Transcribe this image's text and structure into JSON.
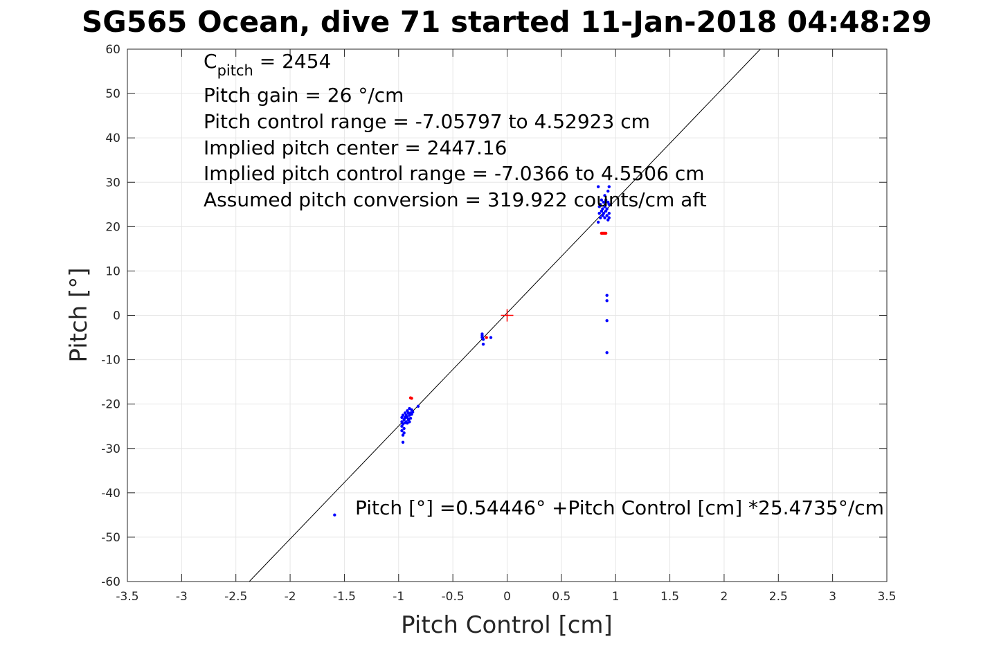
{
  "chart_data": {
    "type": "scatter",
    "title": "SG565 Ocean, dive 71 started 11-Jan-2018 04:48:29",
    "xlabel": "Pitch Control [cm]",
    "ylabel": "Pitch [°]",
    "xlim": [
      -3.5,
      3.5
    ],
    "ylim": [
      -60,
      60
    ],
    "xticks": [
      -3.5,
      -3,
      -2.5,
      -2,
      -1.5,
      -1,
      -0.5,
      0,
      0.5,
      1,
      1.5,
      2,
      2.5,
      3,
      3.5
    ],
    "yticks": [
      60,
      50,
      40,
      30,
      20,
      10,
      0,
      -10,
      -20,
      -30,
      -40,
      -50,
      -60
    ],
    "xtick_labels": [
      "-3.5",
      "-3",
      "-2.5",
      "-2",
      "-1.5",
      "-1",
      "-0.5",
      "0",
      "0.5",
      "1",
      "1.5",
      "2",
      "2.5",
      "3",
      "3.5"
    ],
    "ytick_labels": [
      "60",
      "50",
      "40",
      "30",
      "20",
      "10",
      "0",
      "-10",
      "-20",
      "-30",
      "-40",
      "-50",
      "-60"
    ],
    "grid": true,
    "annotations": {
      "c_pitch_main": "C",
      "c_pitch_sub": "pitch",
      "c_pitch_value": " = 2454",
      "lines": [
        "Pitch gain = 26 °/cm",
        "Pitch control range = -7.05797 to 4.52923 cm",
        "Implied pitch center = 2447.16",
        "Implied pitch control range = -7.0366 to 4.5506 cm",
        "Assumed pitch conversion = 319.922 counts/cm aft"
      ],
      "fit_equation": "Pitch [°] =0.54446° +Pitch Control [cm] *25.4735°/cm"
    },
    "fit_line": {
      "intercept": 0.54446,
      "slope": 25.4735,
      "color": "#000000"
    },
    "center_marker": {
      "x": 0,
      "y": 0,
      "color": "#ff0000",
      "shape": "plus"
    },
    "series": [
      {
        "color": "#0000ff",
        "points": [
          [
            -1.59,
            -45
          ],
          [
            -0.97,
            -23.0
          ],
          [
            -0.97,
            -24.0
          ],
          [
            -0.97,
            -25.0
          ],
          [
            -0.97,
            -26.0
          ],
          [
            -0.96,
            -27.0
          ],
          [
            -0.96,
            -28.6
          ],
          [
            -0.96,
            -22.5
          ],
          [
            -0.96,
            -24.5
          ],
          [
            -0.95,
            -23.5
          ],
          [
            -0.95,
            -25.5
          ],
          [
            -0.95,
            -26.5
          ],
          [
            -0.94,
            -22.0
          ],
          [
            -0.94,
            -23.0
          ],
          [
            -0.94,
            -24.2
          ],
          [
            -0.93,
            -22.5
          ],
          [
            -0.93,
            -24.0
          ],
          [
            -0.92,
            -21.5
          ],
          [
            -0.92,
            -23.0
          ],
          [
            -0.92,
            -24.3
          ],
          [
            -0.91,
            -22.0
          ],
          [
            -0.91,
            -23.5
          ],
          [
            -0.9,
            -21.0
          ],
          [
            -0.9,
            -22.5
          ],
          [
            -0.9,
            -24.0
          ],
          [
            -0.89,
            -22.0
          ],
          [
            -0.89,
            -23.2
          ],
          [
            -0.88,
            -21.3
          ],
          [
            -0.88,
            -22.3
          ],
          [
            -0.87,
            -21.8
          ],
          [
            -0.82,
            -20.5
          ],
          [
            -0.23,
            -4.2
          ],
          [
            -0.23,
            -4.6
          ],
          [
            -0.23,
            -5.0
          ],
          [
            -0.22,
            -5.4
          ],
          [
            -0.22,
            -6.5
          ],
          [
            -0.15,
            -5.0
          ],
          [
            0.84,
            29.0
          ],
          [
            0.84,
            21.0
          ],
          [
            0.85,
            23.0
          ],
          [
            0.85,
            24.5
          ],
          [
            0.86,
            22.0
          ],
          [
            0.86,
            25.0
          ],
          [
            0.87,
            23.5
          ],
          [
            0.87,
            26.0
          ],
          [
            0.88,
            24.0
          ],
          [
            0.88,
            22.5
          ],
          [
            0.89,
            25.5
          ],
          [
            0.89,
            23.0
          ],
          [
            0.9,
            24.5
          ],
          [
            0.9,
            27.0
          ],
          [
            0.9,
            22.0
          ],
          [
            0.91,
            23.5
          ],
          [
            0.91,
            26.0
          ],
          [
            0.92,
            24.0
          ],
          [
            0.92,
            22.5
          ],
          [
            0.93,
            25.5
          ],
          [
            0.93,
            21.5
          ],
          [
            0.93,
            28.0
          ],
          [
            0.94,
            29.0
          ],
          [
            0.94,
            23.0
          ],
          [
            0.94,
            25.0
          ],
          [
            0.94,
            22.0
          ],
          [
            0.92,
            4.5
          ],
          [
            0.92,
            3.3
          ],
          [
            0.92,
            -1.2
          ],
          [
            0.92,
            -8.4
          ]
        ]
      },
      {
        "color": "#ff0000",
        "points": [
          [
            -0.88,
            -18.7
          ],
          [
            -0.89,
            -18.6
          ],
          [
            -0.19,
            -5.0
          ],
          [
            0.87,
            18.5
          ],
          [
            0.88,
            18.5
          ],
          [
            0.89,
            18.5
          ],
          [
            0.9,
            18.5
          ],
          [
            0.91,
            18.5
          ]
        ]
      }
    ]
  }
}
